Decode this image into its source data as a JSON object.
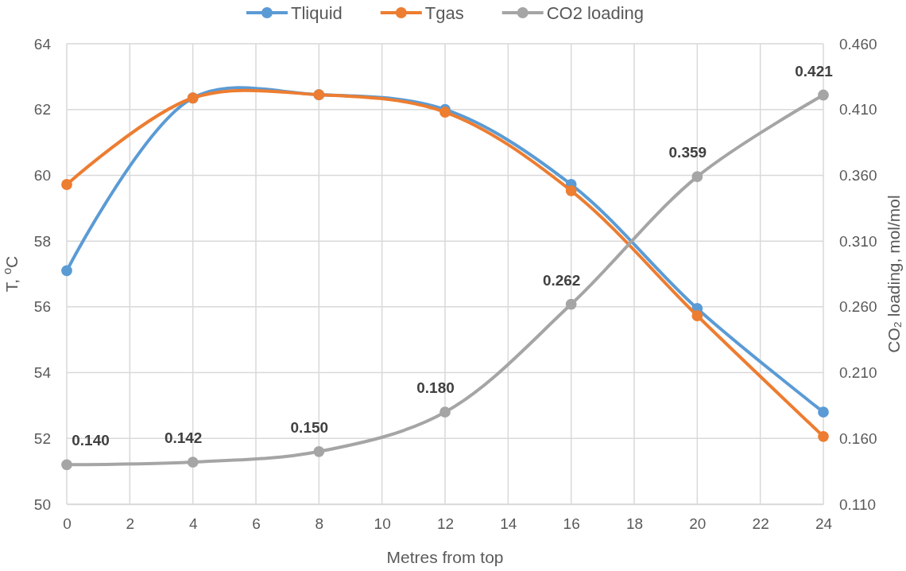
{
  "chart_data": {
    "type": "line",
    "xlabel": "Metres from top",
    "ylabel": "T, $^{o}$C",
    "y2label": "CO₂ loading, mol/mol",
    "x": [
      0,
      4,
      8,
      12,
      16,
      20,
      24
    ],
    "xlim": [
      0,
      24
    ],
    "xticks": [
      0,
      2,
      4,
      6,
      8,
      10,
      12,
      14,
      16,
      18,
      20,
      22,
      24
    ],
    "ylim": [
      50,
      64
    ],
    "yticks": [
      50,
      52,
      54,
      56,
      58,
      60,
      62,
      64
    ],
    "y2lim": [
      0.11,
      0.46
    ],
    "y2ticks": [
      {
        "value": 0.11,
        "label": "0.110"
      },
      {
        "value": 0.16,
        "label": "0.160"
      },
      {
        "value": 0.21,
        "label": "0.210"
      },
      {
        "value": 0.26,
        "label": "0.260"
      },
      {
        "value": 0.31,
        "label": "0.310"
      },
      {
        "value": 0.36,
        "label": "0.360"
      },
      {
        "value": 0.41,
        "label": "0.410"
      },
      {
        "value": 0.46,
        "label": "0.460"
      }
    ],
    "grid": true,
    "legend": "top",
    "marker": "circle",
    "line_style": "solid",
    "series": [
      {
        "name": "Tliquid",
        "color": "#5b9bd5",
        "values": [
          57.1,
          62.35,
          62.45,
          62.0,
          59.72,
          55.95,
          52.8
        ]
      },
      {
        "name": "Tgas",
        "color": "#ed7d31",
        "values": [
          59.72,
          62.35,
          62.45,
          61.92,
          59.53,
          55.73,
          52.06
        ]
      },
      {
        "name": "CO2 loading",
        "color": "#a5a5a5",
        "axis": "y2",
        "values": [
          0.14,
          0.142,
          0.15,
          0.18,
          0.262,
          0.359,
          0.421
        ],
        "value_labels": [
          "0.140",
          "0.142",
          "0.150",
          "0.180",
          "0.262",
          "0.359",
          "0.421"
        ]
      }
    ]
  }
}
